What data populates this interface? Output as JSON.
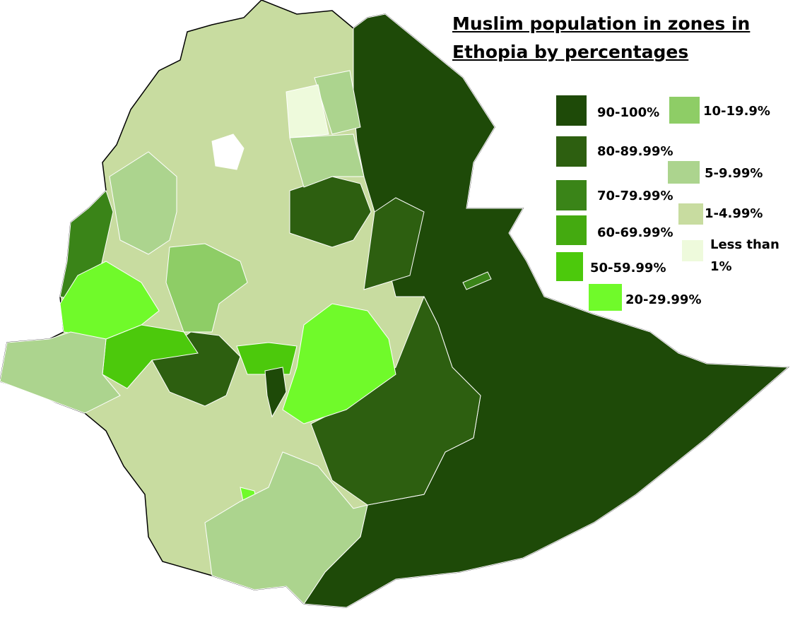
{
  "title": "Muslim population in zones in Ethopia by percentages",
  "legend": [
    {
      "label": "90-100%",
      "color": "#1e4a08"
    },
    {
      "label": "10-19.9%",
      "color": "#8ecd66"
    },
    {
      "label": "80-89.99%",
      "color": "#2d5f10"
    },
    {
      "label": "5-9.99%",
      "color": "#acd48e"
    },
    {
      "label": "70-79.99%",
      "color": "#3a8418"
    },
    {
      "label": "1-4.99%",
      "color": "#c8dca0"
    },
    {
      "label": "60-69.99%",
      "color": "#44aa10"
    },
    {
      "label": "Less than 1%",
      "color": "#eefadc"
    },
    {
      "label": "50-59.99%",
      "color": "#4cc90c"
    },
    {
      "label": "20-29.99%",
      "color": "#70fa2a"
    }
  ]
}
